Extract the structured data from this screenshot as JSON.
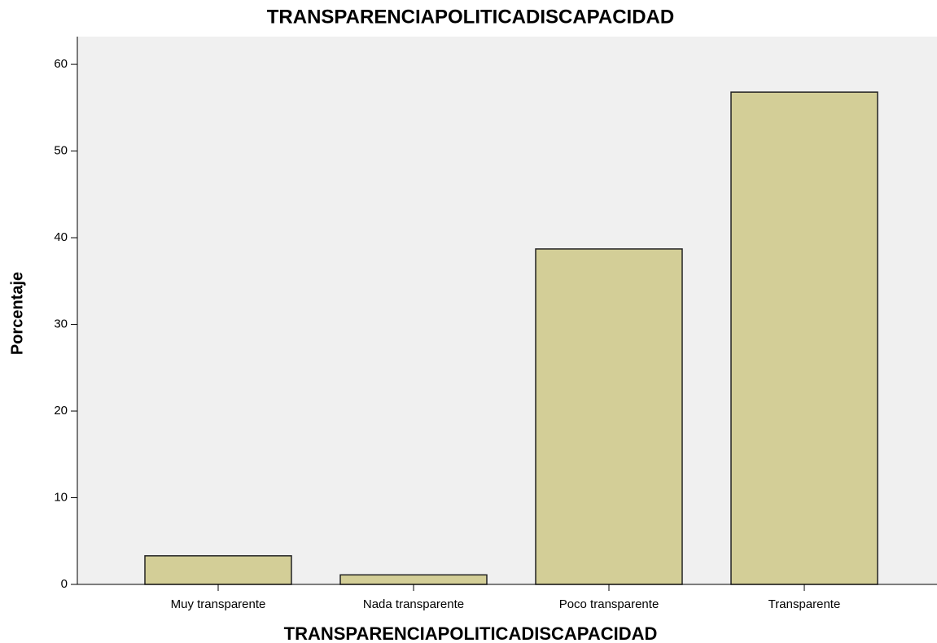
{
  "chart_data": {
    "type": "bar",
    "title": "TRANSPARENCIAPOLITICADISCAPACIDAD",
    "x_label": "TRANSPARENCIAPOLITICADISCAPACIDAD",
    "y_label": "Porcentaje",
    "categories": [
      "Muy transparente",
      "Nada transparente",
      "Poco transparente",
      "Transparente"
    ],
    "values": [
      3.3,
      1.1,
      38.7,
      56.8
    ],
    "color": "#d3ce97",
    "ylim": [
      0,
      63.2
    ],
    "yticks": [
      0,
      10,
      20,
      30,
      40,
      50,
      60
    ],
    "grid": false
  }
}
